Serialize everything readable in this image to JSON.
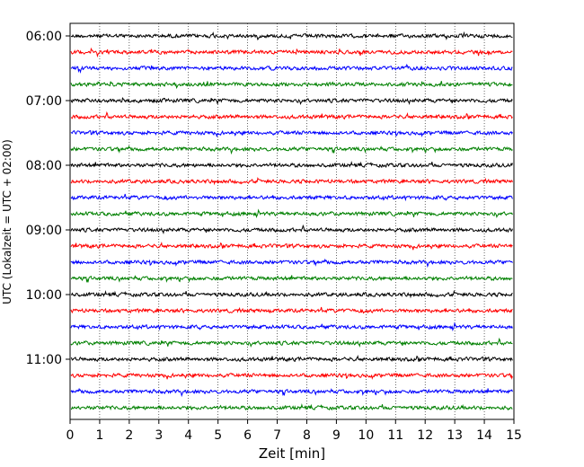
{
  "chart_data": {
    "type": "line",
    "title": "",
    "xlabel": "Zeit  [min]",
    "ylabel": "UTC (Lokalzeit = UTC + 02:00)",
    "xlim": [
      0,
      15
    ],
    "x_ticks": [
      "0",
      "1",
      "2",
      "3",
      "4",
      "5",
      "6",
      "7",
      "8",
      "9",
      "10",
      "11",
      "12",
      "13",
      "14",
      "15"
    ],
    "y_ticks": [
      {
        "label": "06:00",
        "trace_index": 0
      },
      {
        "label": "07:00",
        "trace_index": 4
      },
      {
        "label": "08:00",
        "trace_index": 8
      },
      {
        "label": "09:00",
        "trace_index": 12
      },
      {
        "label": "10:00",
        "trace_index": 16
      },
      {
        "label": "11:00",
        "trace_index": 20
      }
    ],
    "trace_interval_min": 15,
    "start_time": "06:00",
    "trace_count": 24,
    "trace_colors": [
      "#000000",
      "#ff0000",
      "#0000ff",
      "#008000"
    ],
    "grid": "vertical dotted"
  }
}
